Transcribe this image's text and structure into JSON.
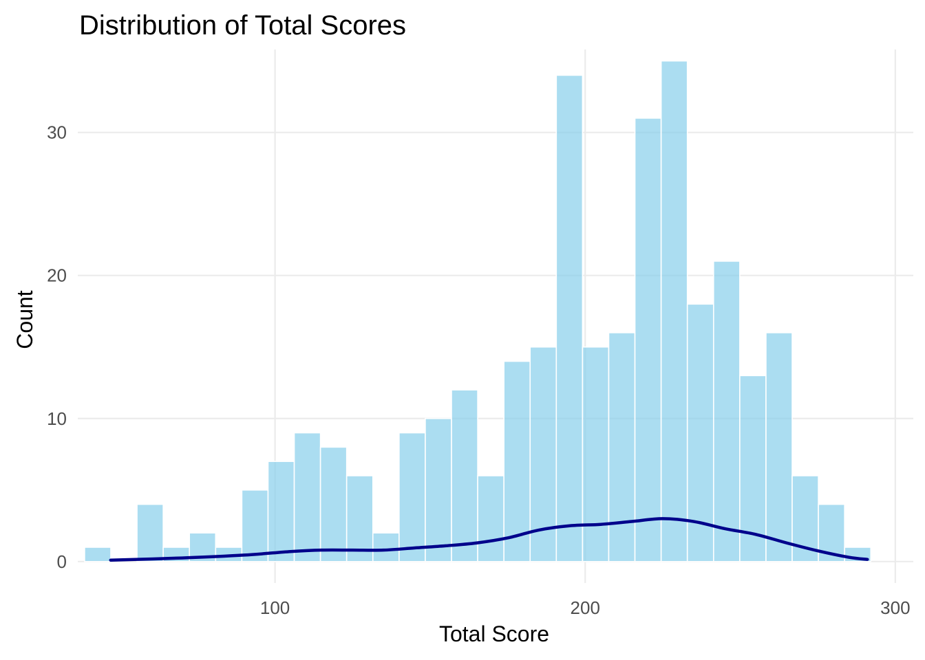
{
  "chart_data": {
    "type": "bar",
    "subtype": "histogram",
    "title": "Distribution of Total Scores",
    "xlabel": "Total Score",
    "ylabel": "Count",
    "xlim": [
      36.4,
      305.8
    ],
    "ylim": [
      -1.5,
      35.8
    ],
    "x_ticks": [
      100,
      200,
      300
    ],
    "y_ticks": [
      0,
      10,
      20,
      30
    ],
    "grid": true,
    "bin_width": 8.45,
    "bins_start": 38.6,
    "counts": [
      1,
      0,
      4,
      1,
      2,
      1,
      5,
      7,
      9,
      8,
      6,
      2,
      9,
      10,
      12,
      6,
      14,
      15,
      34,
      15,
      16,
      31,
      35,
      18,
      21,
      13,
      16,
      6,
      4,
      1
    ],
    "density_curve": {
      "x": [
        47,
        70,
        90,
        105,
        115,
        125,
        135,
        145,
        155,
        165,
        175,
        185,
        195,
        205,
        215,
        225,
        235,
        245,
        255,
        265,
        275,
        285,
        291
      ],
      "y": [
        0.1,
        0.25,
        0.45,
        0.7,
        0.8,
        0.8,
        0.8,
        0.95,
        1.1,
        1.3,
        1.65,
        2.2,
        2.5,
        2.6,
        2.8,
        3.0,
        2.8,
        2.3,
        1.9,
        1.3,
        0.75,
        0.3,
        0.15
      ]
    },
    "colors": {
      "bar_fill": "#87ceeb",
      "bar_stroke": "#ffffff",
      "density_line": "#00008b",
      "grid": "#ebebeb"
    }
  }
}
